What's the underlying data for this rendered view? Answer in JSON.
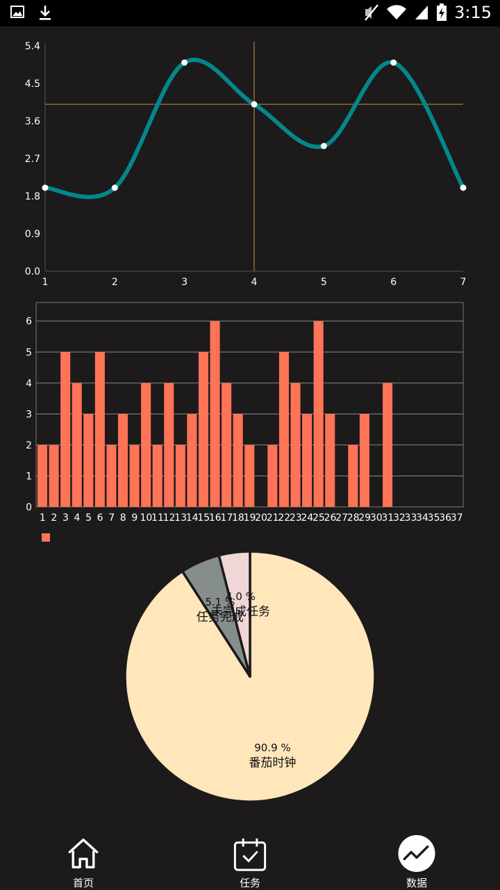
{
  "status_bar": {
    "time": "3:15",
    "icons": [
      "image-icon",
      "download-icon",
      "mute-icon",
      "wifi-icon",
      "signal-icon",
      "battery-charging-icon"
    ]
  },
  "colors": {
    "background": "#1c1a1b",
    "line": "#04878a",
    "bar": "#ff7356",
    "pie_large": "#ffe6bb",
    "pie_medium": "#868d8d",
    "pie_small": "#f0d6d6",
    "crosshair": "#8a6d3b"
  },
  "chart_data": [
    {
      "type": "line",
      "x": [
        1,
        2,
        3,
        4,
        5,
        6,
        7
      ],
      "y": [
        2,
        2,
        5,
        4,
        3,
        5,
        2
      ],
      "xticks": [
        "1",
        "2",
        "3",
        "4",
        "5",
        "6",
        "7"
      ],
      "yticks": [
        "0.0",
        "0.9",
        "1.8",
        "2.7",
        "3.6",
        "4.5",
        "5.4"
      ],
      "ylim": [
        0,
        5.4
      ],
      "xlim": [
        1,
        7
      ],
      "smooth": true,
      "highlight": {
        "x": 4,
        "y": 4
      },
      "grid": false
    },
    {
      "type": "bar",
      "categories": [
        "1",
        "2",
        "3",
        "4",
        "5",
        "6",
        "7",
        "8",
        "9",
        "10",
        "11",
        "12",
        "13",
        "14",
        "15",
        "16",
        "17",
        "18",
        "19",
        "20",
        "21",
        "22",
        "23",
        "24",
        "25",
        "26",
        "27",
        "28",
        "29",
        "30",
        "31",
        "32",
        "33",
        "34",
        "35",
        "36",
        "37"
      ],
      "values": [
        2,
        2,
        5,
        4,
        3,
        5,
        2,
        3,
        2,
        4,
        2,
        4,
        2,
        3,
        5,
        6,
        4,
        3,
        2,
        0,
        2,
        5,
        4,
        3,
        6,
        3,
        0,
        2,
        3,
        0,
        4,
        0,
        0,
        0,
        0,
        0,
        0
      ],
      "yticks": [
        "0",
        "1",
        "2",
        "3",
        "4",
        "5",
        "6"
      ],
      "ylim": [
        0,
        6.6
      ],
      "grid": true,
      "legend": [
        {
          "name": ""
        }
      ]
    },
    {
      "type": "pie",
      "slices": [
        {
          "label": "番茄时钟",
          "percent": 90.9,
          "percent_text": "90.9 %"
        },
        {
          "label": "任务完成",
          "percent": 5.1,
          "percent_text": "5.1 %"
        },
        {
          "label": "未完成任务",
          "percent": 4.0,
          "percent_text": "4.0 %"
        }
      ]
    }
  ],
  "nav": {
    "items": [
      {
        "label": "首页",
        "icon": "home-icon"
      },
      {
        "label": "任务",
        "icon": "calendar-check-icon"
      },
      {
        "label": "数据",
        "icon": "chart-trend-icon"
      }
    ]
  }
}
